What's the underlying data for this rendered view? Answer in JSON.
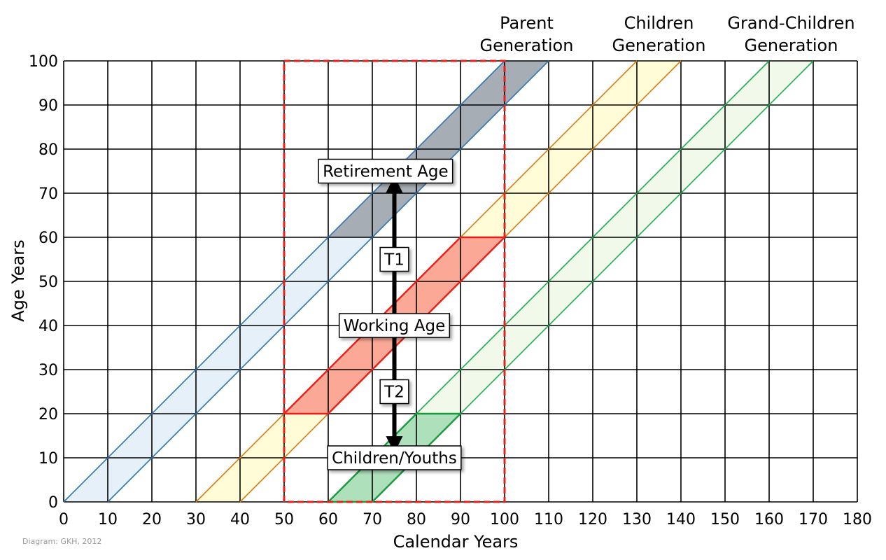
{
  "chart_data": {
    "type": "area",
    "xlabel": "Calendar Years",
    "ylabel": "Age Years",
    "xlim": [
      0,
      180
    ],
    "ylim": [
      0,
      100
    ],
    "x_ticks": [
      0,
      10,
      20,
      30,
      40,
      50,
      60,
      70,
      80,
      90,
      100,
      110,
      120,
      130,
      140,
      150,
      160,
      170,
      180
    ],
    "y_ticks": [
      0,
      10,
      20,
      30,
      40,
      50,
      60,
      70,
      80,
      90,
      100
    ],
    "grid": true,
    "generations": [
      {
        "name": "Parent Generation",
        "name_lines": [
          "Parent",
          "Generation"
        ],
        "label_x": 105,
        "birth_start": 0,
        "birth_end": 10,
        "line_color": "#2e75b6",
        "segments": [
          {
            "stage": "young",
            "age_from": 0,
            "age_to": 60,
            "fill": "#deebf7",
            "fill_opacity": 0.75
          },
          {
            "stage": "retired",
            "age_from": 60,
            "age_to": 100,
            "fill": "#a7adb4",
            "fill_opacity": 1.0
          }
        ]
      },
      {
        "name": "Children Generation",
        "name_lines": [
          "Children",
          "Generation"
        ],
        "label_x": 135,
        "birth_start": 30,
        "birth_end": 40,
        "line_color": "#e07b10",
        "segments": [
          {
            "stage": "all",
            "age_from": 0,
            "age_to": 100,
            "fill": "#fffbd0",
            "fill_opacity": 0.85
          },
          {
            "stage": "working",
            "age_from": 20,
            "age_to": 60,
            "fill": "#fba896",
            "fill_opacity": 1.0,
            "x_from": 50,
            "x_to": 100,
            "line_color": "#e8201a"
          }
        ]
      },
      {
        "name": "Grand-Children Generation",
        "name_lines": [
          "Grand-Children",
          "Generation"
        ],
        "label_x": 165,
        "birth_start": 60,
        "birth_end": 70,
        "line_color": "#1fae4b",
        "segments": [
          {
            "stage": "all",
            "age_from": 0,
            "age_to": 100,
            "fill": "#eef8e8",
            "fill_opacity": 0.85
          },
          {
            "stage": "children",
            "age_from": 0,
            "age_to": 20,
            "fill": "#aee0bc",
            "fill_opacity": 1.0,
            "x_from": 50,
            "x_to": 100,
            "line_color": "#1c9a3e"
          }
        ]
      }
    ],
    "focus_window": {
      "x_from": 50,
      "x_to": 100,
      "y_from": 0,
      "y_to": 100,
      "color": "#e8201a"
    },
    "annotations": [
      {
        "text": "Retirement Age",
        "x": 73,
        "y": 75
      },
      {
        "text": "T1",
        "x": 75,
        "y": 55
      },
      {
        "text": "Working Age",
        "x": 75,
        "y": 40
      },
      {
        "text": "T2",
        "x": 75,
        "y": 25
      },
      {
        "text": "Children/Youths",
        "x": 75,
        "y": 10
      }
    ],
    "arrow": {
      "x": 75,
      "y_from": 13,
      "y_to": 72
    }
  },
  "credit": "Diagram: GKH, 2012"
}
